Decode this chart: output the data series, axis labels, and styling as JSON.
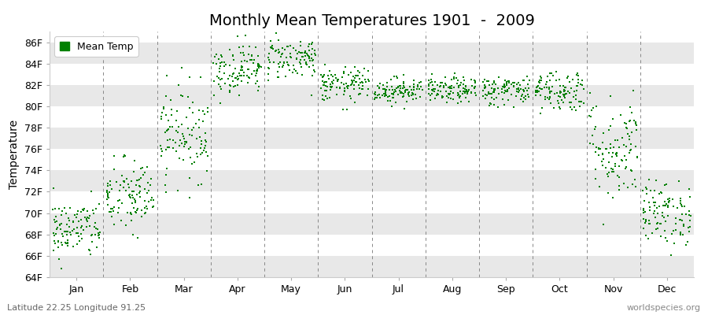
{
  "title": "Monthly Mean Temperatures 1901  -  2009",
  "ylabel": "Temperature",
  "subtitle": "Latitude 22.25 Longitude 91.25",
  "watermark": "worldspecies.org",
  "legend_label": "Mean Temp",
  "dot_color": "#008000",
  "ylim": [
    64,
    87
  ],
  "yticks": [
    64,
    66,
    68,
    70,
    72,
    74,
    76,
    78,
    80,
    82,
    84,
    86
  ],
  "ytick_labels": [
    "64F",
    "66F",
    "68F",
    "70F",
    "72F",
    "74F",
    "76F",
    "78F",
    "80F",
    "82F",
    "84F",
    "86F"
  ],
  "months": [
    "Jan",
    "Feb",
    "Mar",
    "Apr",
    "May",
    "Jun",
    "Jul",
    "Aug",
    "Sep",
    "Oct",
    "Nov",
    "Dec"
  ],
  "month_means": [
    68.5,
    71.5,
    77.5,
    83.5,
    84.5,
    82.0,
    81.5,
    81.5,
    81.5,
    81.5,
    76.0,
    70.0
  ],
  "month_stds": [
    1.4,
    1.8,
    2.2,
    1.2,
    1.0,
    0.8,
    0.6,
    0.6,
    0.7,
    1.0,
    2.5,
    1.5
  ],
  "n_years": 109,
  "fig_bg_color": "#ffffff",
  "plot_bg_color": "#ffffff",
  "band_colors": [
    "#e8e8e8",
    "#ffffff"
  ],
  "dashed_line_color": "#888888",
  "title_fontsize": 14,
  "axis_fontsize": 10,
  "tick_fontsize": 9,
  "dot_size": 4
}
